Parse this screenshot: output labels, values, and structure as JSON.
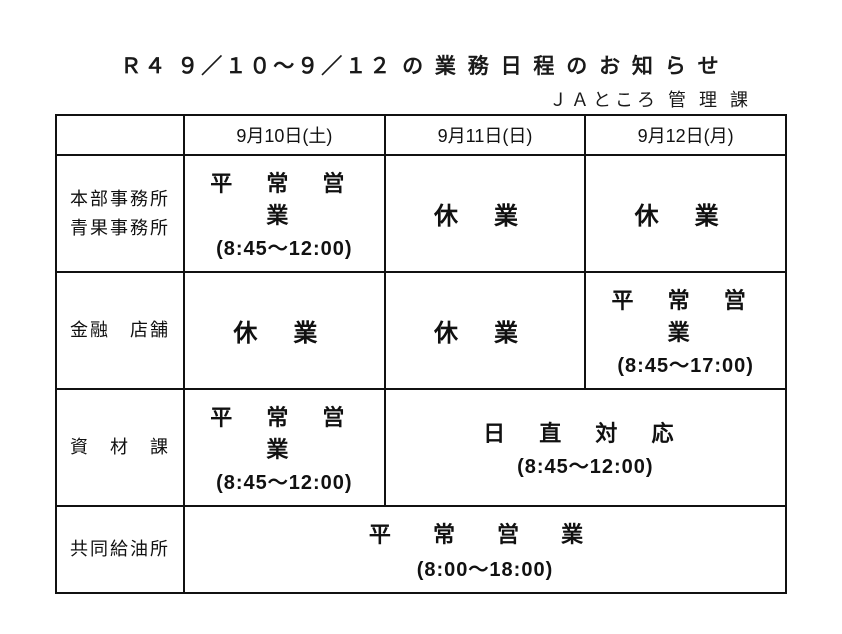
{
  "title": "Ｒ４ ９／１０～９／１２ の 業 務 日 程 の お 知 ら せ",
  "subtitle": "ＪＡところ 管 理 課",
  "dates": [
    "9月10日(土)",
    "9月11日(日)",
    "9月12日(月)"
  ],
  "rowLabels": {
    "r1a": "本部事務所",
    "r1b": "青果事務所",
    "r2": "金融　店舗",
    "r3": "資　材　課",
    "r4": "共同給油所"
  },
  "cells": {
    "r1c1_status": "平 常 営 業",
    "r1c1_hours": "(8:45～12:00)",
    "r1c2_status": "休業",
    "r1c3_status": "休業",
    "r2c1_status": "休業",
    "r2c2_status": "休業",
    "r2c3_status": "平 常 営 業",
    "r2c3_hours": "(8:45～17:00)",
    "r3c1_status": "平 常 営 業",
    "r3c1_hours": "(8:45～12:00)",
    "r3c23_status": "日 直 対 応",
    "r3c23_hours": "(8:45～12:00)",
    "r4_status": "平 常 営 業",
    "r4_hours": "(8:00～18:00)"
  }
}
